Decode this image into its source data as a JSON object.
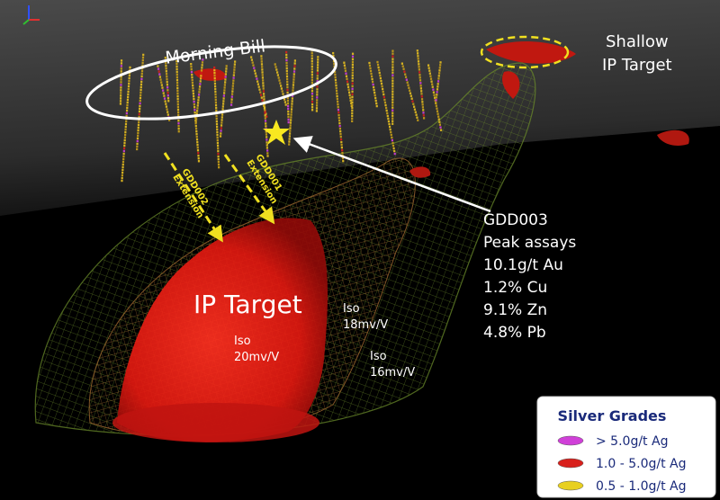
{
  "annotations": {
    "morning_bill": "Morning Bill",
    "shallow_ip_target": [
      "Shallow",
      "IP Target"
    ],
    "ip_target": "IP Target",
    "drill_holes": [
      {
        "name": "GDD002",
        "note": "Extension"
      },
      {
        "name": "GDD001",
        "note": "Extension"
      }
    ],
    "callout": [
      "GDD003",
      "Peak assays",
      "10.1g/t Au",
      "1.2% Cu",
      "9.1% Zn",
      "4.8% Pb"
    ],
    "iso_labels": [
      [
        "Iso",
        "20mv/V"
      ],
      [
        "Iso",
        "18mv/V"
      ],
      [
        "Iso",
        "16mv/V"
      ]
    ]
  },
  "legend": {
    "title": "Silver Grades",
    "items": [
      {
        "label": "> 5.0g/t Ag",
        "color": "#d040d8"
      },
      {
        "label": "1.0 - 5.0g/t Ag",
        "color": "#d8201c"
      },
      {
        "label": "0.5 - 1.0g/t Ag",
        "color": "#e8d020"
      }
    ]
  }
}
